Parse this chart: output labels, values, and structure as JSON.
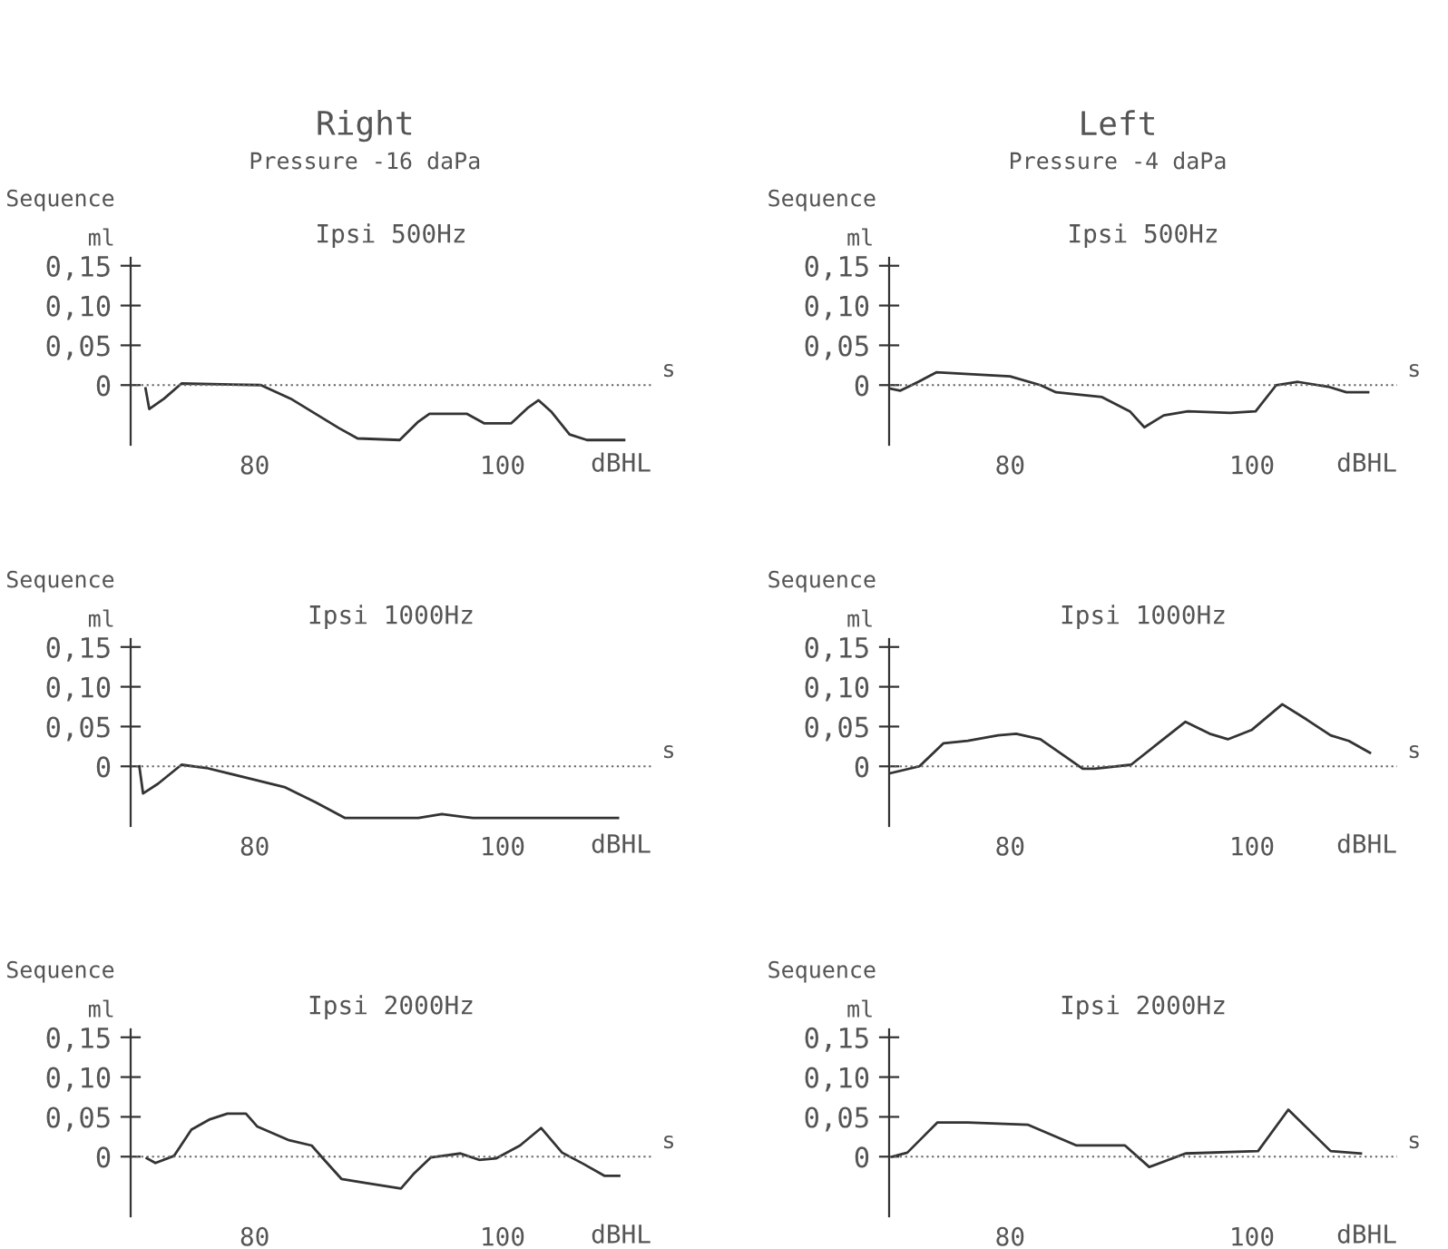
{
  "chart_data": [
    {
      "type": "line",
      "title": "Ipsi 500Hz",
      "subtitle": "Sequence",
      "ylabel": "ml",
      "xlabel": "dBHL",
      "annotations": [
        "Right",
        "Pressure -16 daPa",
        "s"
      ],
      "color": "#333333",
      "x": [
        71.2,
        71.5,
        72.7,
        74.1,
        80.5,
        82.9,
        86.8,
        88.3,
        91.7,
        93.2,
        94.1,
        97.1,
        98.5,
        100.7,
        102,
        102.9,
        103.9,
        105.4,
        106.8,
        109.8
      ],
      "values": [
        -0.004,
        -0.03,
        -0.017,
        0.002,
        0,
        -0.017,
        -0.054,
        -0.067,
        -0.069,
        -0.046,
        -0.036,
        -0.036,
        -0.048,
        -0.048,
        -0.029,
        -0.019,
        -0.033,
        -0.062,
        -0.069,
        -0.069
      ],
      "xlim": [
        70,
        112
      ],
      "ylim": [
        -0.075,
        0.16
      ],
      "xticks": [
        80,
        100
      ],
      "yticks": [
        0,
        {
          "value": 0.05,
          "label": "0,05"
        },
        {
          "value": 0.1,
          "label": "0,10"
        },
        {
          "value": 0.15,
          "label": "0,15"
        }
      ],
      "ref_lines": [
        {
          "axis": "y",
          "value": 0,
          "color": "#666666",
          "line_style": "dotted"
        }
      ],
      "grid": false
    },
    {
      "type": "line",
      "title": "Ipsi 500Hz",
      "subtitle": "Sequence",
      "ylabel": "ml",
      "xlabel": "dBHL",
      "annotations": [
        "Left",
        "Pressure -4 daPa",
        "s"
      ],
      "color": "#333333",
      "x": [
        70,
        70.9,
        72.4,
        73.9,
        80,
        82.5,
        83.8,
        87.6,
        89.9,
        91.1,
        92.7,
        94.7,
        98.2,
        100.3,
        102,
        103.8,
        106.3,
        107.8,
        109.6
      ],
      "values": [
        -0.004,
        -0.007,
        0.004,
        0.016,
        0.011,
        0,
        -0.009,
        -0.015,
        -0.033,
        -0.053,
        -0.038,
        -0.033,
        -0.035,
        -0.033,
        0,
        0.004,
        -0.002,
        -0.009,
        -0.009
      ],
      "xlim": [
        70,
        112
      ],
      "ylim": [
        -0.075,
        0.16
      ],
      "xticks": [
        80,
        100
      ],
      "yticks": [
        0,
        {
          "value": 0.05,
          "label": "0,05"
        },
        {
          "value": 0.1,
          "label": "0,10"
        },
        {
          "value": 0.15,
          "label": "0,15"
        }
      ],
      "ref_lines": [
        {
          "axis": "y",
          "value": 0,
          "color": "#666666",
          "line_style": "dotted"
        }
      ],
      "grid": false
    },
    {
      "type": "line",
      "title": "Ipsi 1000Hz",
      "subtitle": "Sequence",
      "ylabel": "ml",
      "xlabel": "dBHL",
      "annotations": [
        "s"
      ],
      "color": "#333333",
      "x": [
        70.7,
        71,
        72.2,
        74.1,
        76.1,
        79.5,
        82.4,
        84.9,
        87.3,
        93.2,
        95.1,
        97.6,
        109.3
      ],
      "values": [
        0,
        -0.034,
        -0.022,
        0.002,
        -0.002,
        -0.015,
        -0.026,
        -0.045,
        -0.065,
        -0.065,
        -0.06,
        -0.065,
        -0.065
      ],
      "xlim": [
        70,
        112
      ],
      "ylim": [
        -0.075,
        0.16
      ],
      "xticks": [
        80,
        100
      ],
      "yticks": [
        0,
        {
          "value": 0.05,
          "label": "0,05"
        },
        {
          "value": 0.1,
          "label": "0,10"
        },
        {
          "value": 0.15,
          "label": "0,15"
        }
      ],
      "ref_lines": [
        {
          "axis": "y",
          "value": 0,
          "color": "#666666",
          "line_style": "dotted"
        }
      ],
      "grid": false
    },
    {
      "type": "line",
      "title": "Ipsi 1000Hz",
      "subtitle": "Sequence",
      "ylabel": "ml",
      "xlabel": "dBHL",
      "annotations": [
        "s"
      ],
      "color": "#333333",
      "x": [
        70,
        72.5,
        74.5,
        76.5,
        79,
        80.5,
        82.5,
        84.5,
        86,
        87,
        90,
        92.5,
        94.5,
        96.5,
        98,
        100,
        102.5,
        104.5,
        106.5,
        108,
        109.75
      ],
      "values": [
        -0.009,
        0,
        0.029,
        0.032,
        0.039,
        0.041,
        0.034,
        0.013,
        -0.003,
        -0.003,
        0.002,
        0.032,
        0.056,
        0.041,
        0.034,
        0.046,
        0.078,
        0.059,
        0.039,
        0.032,
        0.017
      ],
      "xlim": [
        70,
        112
      ],
      "ylim": [
        -0.075,
        0.16
      ],
      "xticks": [
        80,
        100
      ],
      "yticks": [
        0,
        {
          "value": 0.05,
          "label": "0,05"
        },
        {
          "value": 0.1,
          "label": "0,10"
        },
        {
          "value": 0.15,
          "label": "0,15"
        }
      ],
      "ref_lines": [
        {
          "axis": "y",
          "value": 0,
          "color": "#666666",
          "line_style": "dotted"
        }
      ],
      "grid": false
    },
    {
      "type": "line",
      "title": "Ipsi 2000Hz",
      "subtitle": "Sequence",
      "ylabel": "ml",
      "xlabel": "dBHL",
      "annotations": [
        "s"
      ],
      "color": "#333333",
      "x": [
        71.3,
        72,
        73.5,
        74.9,
        76.4,
        77.8,
        79.3,
        80.2,
        82.7,
        84.6,
        85.5,
        87,
        88.9,
        91.8,
        92.8,
        94.2,
        96.6,
        98.1,
        99.5,
        101.4,
        103.1,
        104.8,
        106.5,
        108.2,
        109.4
      ],
      "values": [
        -0.002,
        -0.008,
        0.001,
        0.034,
        0.047,
        0.054,
        0.054,
        0.038,
        0.021,
        0.014,
        -0.002,
        -0.028,
        -0.033,
        -0.04,
        -0.022,
        -0.001,
        0.004,
        -0.004,
        -0.002,
        0.014,
        0.036,
        0.005,
        -0.009,
        -0.024,
        -0.024
      ],
      "xlim": [
        70,
        112
      ],
      "ylim": [
        -0.075,
        0.16
      ],
      "xticks": [
        80,
        100
      ],
      "yticks": [
        0,
        {
          "value": 0.05,
          "label": "0,05"
        },
        {
          "value": 0.1,
          "label": "0,10"
        },
        {
          "value": 0.15,
          "label": "0,15"
        }
      ],
      "ref_lines": [
        {
          "axis": "y",
          "value": 0,
          "color": "#666666",
          "line_style": "dotted"
        }
      ],
      "grid": false
    },
    {
      "type": "line",
      "title": "Ipsi 2000Hz",
      "subtitle": "Sequence",
      "ylabel": "ml",
      "xlabel": "dBHL",
      "annotations": [
        "s"
      ],
      "color": "#333333",
      "x": [
        70.25,
        71.5,
        74,
        76.5,
        81.5,
        85.5,
        89.5,
        91.5,
        94.5,
        100.5,
        103,
        106.5,
        109
      ],
      "values": [
        0,
        0.005,
        0.043,
        0.043,
        0.04,
        0.014,
        0.014,
        -0.013,
        0.004,
        0.007,
        0.059,
        0.007,
        0.004
      ],
      "xlim": [
        70,
        112
      ],
      "ylim": [
        -0.075,
        0.16
      ],
      "xticks": [
        80,
        100
      ],
      "yticks": [
        0,
        {
          "value": 0.05,
          "label": "0,05"
        },
        {
          "value": 0.1,
          "label": "0,10"
        },
        {
          "value": 0.15,
          "label": "0,15"
        }
      ],
      "ref_lines": [
        {
          "axis": "y",
          "value": 0,
          "color": "#666666",
          "line_style": "dotted"
        }
      ],
      "grid": false
    }
  ]
}
